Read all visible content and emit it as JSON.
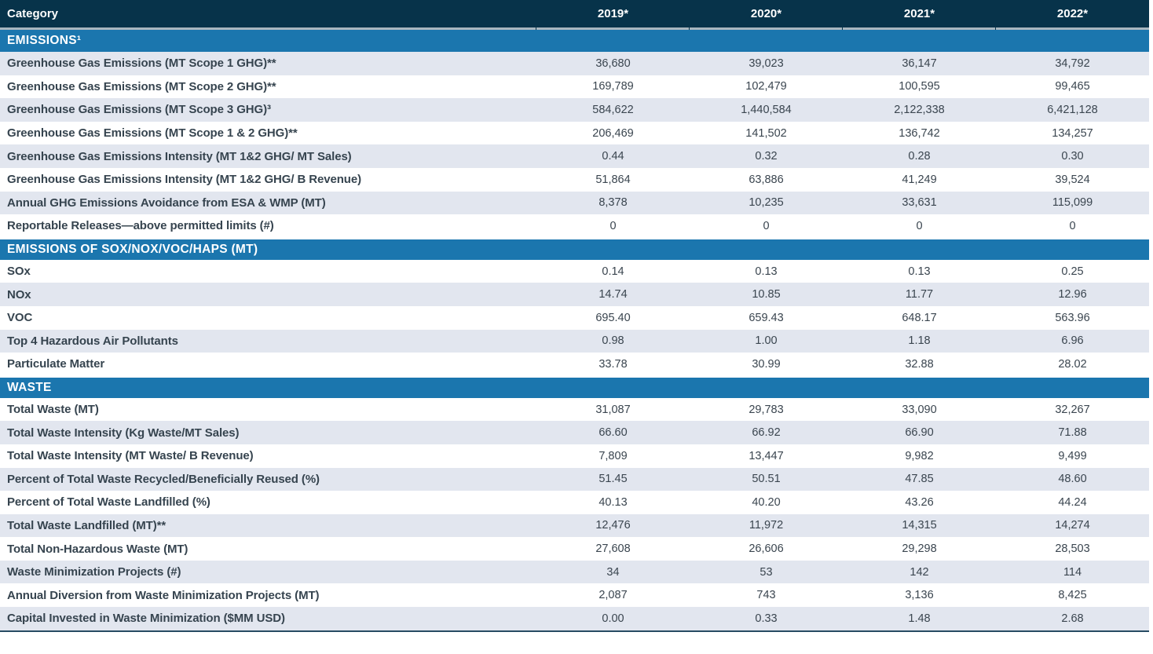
{
  "table": {
    "category_header": "Category",
    "year_headers": [
      "2019*",
      "2020*",
      "2021*",
      "2022*"
    ],
    "colors": {
      "header_bg": "#07334a",
      "section_band_bg": "#1b76ae",
      "row_alt_bg": "#e2e6ef",
      "row_bg": "#ffffff",
      "separator_line": "#a9b6bf",
      "label_text": "#36444f",
      "value_text": "#3a454f",
      "bottom_border": "#274b63"
    },
    "sections": [
      {
        "title": "EMISSIONS¹",
        "rows": [
          {
            "label": "Greenhouse Gas Emissions (MT Scope 1 GHG)**",
            "values": [
              "36,680",
              "39,023",
              "36,147",
              "34,792"
            ]
          },
          {
            "label": "Greenhouse Gas Emissions (MT Scope 2 GHG)**",
            "values": [
              "169,789",
              "102,479",
              "100,595",
              "99,465"
            ]
          },
          {
            "label": "Greenhouse Gas Emissions (MT Scope 3 GHG)³",
            "values": [
              "584,622",
              "1,440,584",
              "2,122,338",
              "6,421,128"
            ]
          },
          {
            "label": "Greenhouse Gas Emissions (MT Scope 1 & 2 GHG)**",
            "values": [
              "206,469",
              "141,502",
              "136,742",
              "134,257"
            ]
          },
          {
            "label": "Greenhouse Gas Emissions Intensity (MT 1&2 GHG/ MT Sales)",
            "values": [
              "0.44",
              "0.32",
              "0.28",
              "0.30"
            ]
          },
          {
            "label": "Greenhouse Gas Emissions Intensity (MT 1&2 GHG/ B Revenue)",
            "values": [
              "51,864",
              "63,886",
              "41,249",
              "39,524"
            ]
          },
          {
            "label": "Annual GHG Emissions Avoidance from ESA & WMP (MT)",
            "values": [
              "8,378",
              "10,235",
              "33,631",
              "115,099"
            ]
          },
          {
            "label": "Reportable Releases—above permitted limits (#)",
            "values": [
              "0",
              "0",
              "0",
              "0"
            ]
          }
        ]
      },
      {
        "title": "EMISSIONS OF SOX/NOX/VOC/HAPS (MT)",
        "rows": [
          {
            "label": "SOx",
            "values": [
              "0.14",
              "0.13",
              "0.13",
              "0.25"
            ]
          },
          {
            "label": "NOx",
            "values": [
              "14.74",
              "10.85",
              "11.77",
              "12.96"
            ]
          },
          {
            "label": "VOC",
            "values": [
              "695.40",
              "659.43",
              "648.17",
              "563.96"
            ]
          },
          {
            "label": "Top 4 Hazardous Air Pollutants",
            "values": [
              "0.98",
              "1.00",
              "1.18",
              "6.96"
            ]
          },
          {
            "label": "Particulate Matter",
            "values": [
              "33.78",
              "30.99",
              "32.88",
              "28.02"
            ]
          }
        ]
      },
      {
        "title": "WASTE",
        "rows": [
          {
            "label": "Total Waste (MT)",
            "values": [
              "31,087",
              "29,783",
              "33,090",
              "32,267"
            ]
          },
          {
            "label": "Total Waste Intensity (Kg Waste/MT Sales)",
            "values": [
              "66.60",
              "66.92",
              "66.90",
              "71.88"
            ]
          },
          {
            "label": "Total Waste Intensity (MT Waste/ B Revenue)",
            "values": [
              "7,809",
              "13,447",
              "9,982",
              "9,499"
            ]
          },
          {
            "label": "Percent of Total Waste Recycled/Beneficially Reused (%)",
            "values": [
              "51.45",
              "50.51",
              "47.85",
              "48.60"
            ]
          },
          {
            "label": "Percent of Total Waste Landfilled (%)",
            "values": [
              "40.13",
              "40.20",
              "43.26",
              "44.24"
            ]
          },
          {
            "label": "Total Waste Landfilled (MT)**",
            "values": [
              "12,476",
              "11,972",
              "14,315",
              "14,274"
            ]
          },
          {
            "label": "Total Non-Hazardous Waste (MT)",
            "values": [
              "27,608",
              "26,606",
              "29,298",
              "28,503"
            ]
          },
          {
            "label": "Waste Minimization Projects (#)",
            "values": [
              "34",
              "53",
              "142",
              "114"
            ]
          },
          {
            "label": "Annual Diversion from Waste Minimization Projects (MT)",
            "values": [
              "2,087",
              "743",
              "3,136",
              "8,425"
            ]
          },
          {
            "label": "Capital Invested in Waste Minimization ($MM USD)",
            "values": [
              "0.00",
              "0.33",
              "1.48",
              "2.68"
            ]
          }
        ]
      }
    ]
  }
}
